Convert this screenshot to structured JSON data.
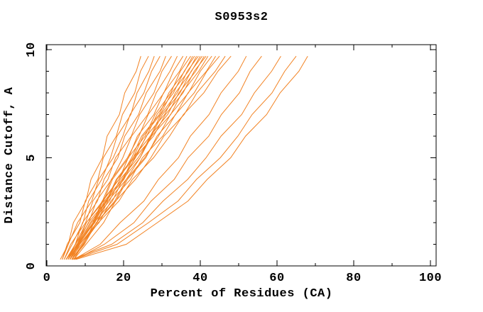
{
  "colors": {
    "background": "#FFFFFF",
    "axis": "#000000",
    "text": "#000000",
    "curve": "#F28222"
  },
  "chart_data": {
    "type": "line",
    "title": "S0953s2",
    "xlabel": "Percent of Residues (CA)",
    "ylabel": "Distance Cutoff, A",
    "xlim": [
      0,
      100
    ],
    "ylim": [
      0,
      10
    ],
    "grid": false,
    "legend": "none",
    "x_tick_values": [
      0,
      20,
      40,
      60,
      80,
      100
    ],
    "x_tick_labels": [
      "0",
      "20",
      "40",
      "60",
      "80",
      "100"
    ],
    "x_minor_step": 10,
    "y_tick_values": [
      0,
      5,
      10
    ],
    "y_tick_labels": [
      "0",
      "5",
      "10"
    ],
    "y_minor_step": 1,
    "series_y": [
      0.3,
      1,
      2,
      3,
      4,
      5,
      6,
      7,
      8,
      9,
      9.7
    ],
    "series": [
      {
        "x": [
          3.5,
          5.6,
          6.9,
          10.2,
          11.5,
          14.5,
          15.7,
          18.9,
          20.3,
          23.3,
          24.5
        ]
      },
      {
        "x": [
          4,
          5.3,
          8.6,
          10.0,
          13.3,
          14.7,
          18.1,
          19.7,
          22.9,
          24.4,
          26.5
        ]
      },
      {
        "x": [
          4.5,
          6.6,
          9.4,
          10.9,
          14.3,
          16.6,
          18.3,
          21.9,
          23.5,
          26.6,
          28
        ]
      },
      {
        "x": [
          4,
          5.6,
          8.0,
          11.7,
          13.5,
          17.3,
          19.8,
          21.7,
          25.3,
          27.3,
          29.5
        ]
      },
      {
        "x": [
          5,
          7.4,
          9.3,
          13.2,
          14.9,
          18.5,
          20.3,
          23.9,
          25.9,
          29.5,
          31
        ]
      },
      {
        "x": [
          4.5,
          6.2,
          10.1,
          12.0,
          15.9,
          17.9,
          22.0,
          24.2,
          27.9,
          30.0,
          32.5
        ]
      },
      {
        "x": [
          5,
          7.5,
          10.9,
          12.9,
          16.9,
          19.8,
          22.1,
          26.3,
          28.5,
          32.1,
          34
        ]
      },
      {
        "x": [
          5.5,
          7.4,
          10.3,
          14.5,
          16.8,
          21.0,
          24.0,
          26.4,
          30.5,
          33.0,
          35.5
        ]
      },
      {
        "x": [
          5,
          7.9,
          10.3,
          14.8,
          17.1,
          21.3,
          23.6,
          27.9,
          30.4,
          34.6,
          36.5
        ]
      },
      {
        "x": [
          6,
          8.0,
          12.2,
          14.6,
          18.8,
          21.2,
          25.6,
          28.2,
          32.3,
          34.8,
          37.5
        ]
      },
      {
        "x": [
          5.5,
          8.2,
          12.0,
          14.4,
          18.8,
          22.1,
          24.7,
          29.3,
          31.8,
          35.9,
          38
        ]
      },
      {
        "x": [
          6,
          8.1,
          11.3,
          15.7,
          18.3,
          22.8,
          26.0,
          28.7,
          33.0,
          35.8,
          38.5
        ]
      },
      {
        "x": [
          5,
          8.0,
          10.8,
          15.5,
          18.1,
          22.5,
          25.1,
          29.6,
          32.5,
          36.9,
          39
        ]
      },
      {
        "x": [
          6.5,
          8.6,
          13.0,
          15.5,
          19.9,
          22.4,
          27.0,
          29.7,
          34.0,
          36.6,
          39.5
        ]
      },
      {
        "x": [
          5.5,
          8.4,
          12.3,
          15.0,
          19.6,
          23.1,
          25.9,
          30.7,
          33.5,
          37.7,
          40
        ]
      },
      {
        "x": [
          6,
          8.3,
          11.6,
          16.3,
          19.1,
          23.8,
          27.2,
          30.1,
          34.7,
          37.6,
          40.5
        ]
      },
      {
        "x": [
          6.5,
          9.6,
          12.3,
          17.1,
          19.8,
          24.3,
          26.9,
          31.5,
          34.4,
          38.8,
          41
        ]
      },
      {
        "x": [
          5.5,
          7.8,
          12.5,
          15.3,
          20.1,
          22.9,
          27.8,
          30.9,
          35.5,
          38.4,
          41.5
        ]
      },
      {
        "x": [
          6,
          9.0,
          13.1,
          15.9,
          20.7,
          24.3,
          27.3,
          32.3,
          35.2,
          39.6,
          42
        ]
      },
      {
        "x": [
          7,
          9.4,
          12.9,
          17.7,
          20.7,
          25.5,
          29.1,
          32.2,
          36.9,
          40.0,
          43
        ]
      },
      {
        "x": [
          6.5,
          9.8,
          12.9,
          18.0,
          21.0,
          25.8,
          28.7,
          33.6,
          36.8,
          41.6,
          44
        ]
      },
      {
        "x": [
          6,
          8.5,
          13.6,
          16.7,
          21.8,
          24.9,
          30.2,
          33.5,
          38.4,
          41.7,
          45
        ]
      },
      {
        "x": [
          7,
          10.2,
          14.8,
          17.9,
          23.1,
          27.1,
          30.5,
          35.8,
          39.1,
          43.9,
          46.5
        ]
      },
      {
        "x": [
          6.5,
          9.3,
          13.4,
          18.8,
          22.3,
          27.8,
          32.0,
          35.6,
          40.9,
          44.6,
          48
        ]
      },
      {
        "x": [
          7,
          13.9,
          19.1,
          25.3,
          29.1,
          34.3,
          37.4,
          42.3,
          45.4,
          49.9,
          52
        ]
      },
      {
        "x": [
          7.5,
          15.0,
          22.7,
          27.2,
          33.2,
          36.8,
          42.2,
          45.5,
          50.2,
          53.0,
          56
        ]
      },
      {
        "x": [
          6.5,
          16.9,
          25.0,
          30.3,
          36.7,
          41.5,
          45.4,
          50.8,
          54.1,
          58.6,
          61
        ]
      },
      {
        "x": [
          7,
          18.3,
          26.5,
          34.2,
          39.0,
          45.2,
          49.8,
          53.5,
          58.7,
          62.0,
          65
        ]
      },
      {
        "x": [
          7.5,
          20.7,
          28.8,
          36.8,
          41.8,
          47.9,
          51.8,
          57.3,
          60.8,
          65.7,
          68
        ]
      }
    ]
  }
}
